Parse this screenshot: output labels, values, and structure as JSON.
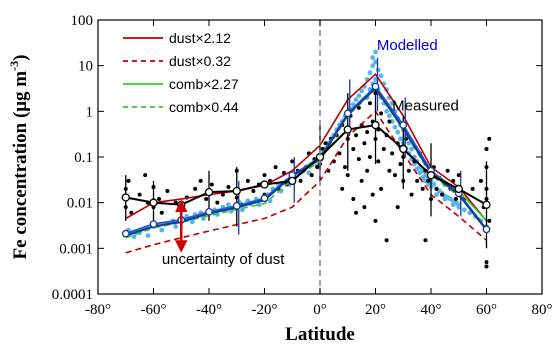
{
  "chart_data": {
    "type": "line",
    "xlabel": "Latitude",
    "ylabel": "Fe concentration (μg m",
    "ylabel_sup": "-3",
    "ylabel_close": ")",
    "xlim": [
      -80,
      80
    ],
    "ylim": [
      0.0001,
      100
    ],
    "yscale": "log",
    "x_ticks": [
      -80,
      -60,
      -40,
      -20,
      0,
      20,
      40,
      60,
      80
    ],
    "x_tick_labels": [
      "-80°",
      "-60°",
      "-40°",
      "-20°",
      "0°",
      "20°",
      "40°",
      "60°",
      "80°"
    ],
    "y_ticks": [
      0.0001,
      0.001,
      0.01,
      0.1,
      1,
      10,
      100
    ],
    "y_tick_labels": [
      "0.0001",
      "0.001",
      "0.01",
      "0.1",
      "1",
      "10",
      "100"
    ],
    "equator_line": 0,
    "legend": {
      "placement": "top-left",
      "entries": [
        {
          "label": "dust×2.12",
          "color": "#c00000",
          "dash": false
        },
        {
          "label": "dust×0.32",
          "color": "#c00000",
          "dash": true
        },
        {
          "label": "comb×2.27",
          "color": "#33cc33",
          "dash": false
        },
        {
          "label": "comb×0.44",
          "color": "#33cc33",
          "dash": true
        }
      ]
    },
    "x": [
      -70,
      -60,
      -50,
      -40,
      -30,
      -20,
      -10,
      0,
      10,
      20,
      30,
      40,
      50,
      60
    ],
    "series": [
      {
        "name": "dust×2.12",
        "color": "#c00000",
        "dash": false,
        "values": [
          0.0045,
          0.01,
          0.012,
          0.015,
          0.018,
          0.024,
          0.05,
          0.18,
          1.8,
          6.5,
          0.8,
          0.06,
          0.022,
          0.004
        ]
      },
      {
        "name": "dust×0.32",
        "color": "#c00000",
        "dash": true,
        "values": [
          0.0008,
          0.0012,
          0.0017,
          0.0024,
          0.0033,
          0.0045,
          0.008,
          0.03,
          0.28,
          1.0,
          0.12,
          0.015,
          0.005,
          0.0015
        ]
      },
      {
        "name": "comb×2.27",
        "color": "#33cc33",
        "dash": false,
        "values": [
          0.002,
          0.003,
          0.004,
          0.006,
          0.008,
          0.011,
          0.04,
          0.1,
          0.9,
          3.4,
          0.45,
          0.05,
          0.018,
          0.004
        ]
      },
      {
        "name": "comb×0.44",
        "color": "#33cc33",
        "dash": true,
        "values": [
          0.0017,
          0.0028,
          0.0037,
          0.0052,
          0.0071,
          0.0095,
          0.032,
          0.08,
          0.8,
          3.0,
          0.4,
          0.04,
          0.014,
          0.003
        ]
      },
      {
        "name": "",
        "color": "#2060e0",
        "dash": false,
        "values": [
          0.0021,
          0.0034,
          0.0042,
          0.0063,
          0.0085,
          0.0125,
          0.04,
          0.095,
          0.9,
          3.5,
          0.5,
          0.05,
          0.016,
          0.0026
        ]
      },
      {
        "name": "",
        "color": "#1a3a9a",
        "dash": false,
        "values": [
          0.0019,
          0.003,
          0.0038,
          0.0058,
          0.0078,
          0.0115,
          0.038,
          0.09,
          0.85,
          3.2,
          0.42,
          0.045,
          0.015,
          0.0025
        ]
      },
      {
        "name": "",
        "color": "#000000",
        "dash": false,
        "values": [
          0.013,
          0.01,
          0.009,
          0.017,
          0.018,
          0.025,
          0.03,
          0.1,
          0.4,
          0.5,
          0.15,
          0.04,
          0.02,
          0.009
        ]
      }
    ],
    "modelled_markers": {
      "x": [
        -70,
        -60,
        -50,
        -40,
        -30,
        -20,
        -10,
        0,
        10,
        20,
        30,
        40,
        50,
        60
      ],
      "values": [
        0.0021,
        0.0034,
        0.0042,
        0.0063,
        0.0085,
        0.0125,
        0.04,
        0.095,
        0.9,
        3.5,
        0.5,
        0.05,
        0.016,
        0.0026
      ]
    },
    "measured_markers": {
      "x": [
        -70,
        -60,
        -50,
        -40,
        -30,
        -20,
        -10,
        0,
        10,
        20,
        30,
        40,
        50,
        60
      ],
      "values": [
        0.013,
        0.01,
        0.009,
        0.017,
        0.018,
        0.025,
        0.03,
        0.1,
        0.4,
        0.5,
        0.15,
        0.04,
        0.02,
        0.009
      ]
    },
    "measured_errorbars": [
      {
        "x": -70,
        "low": 0.004,
        "high": 0.04
      },
      {
        "x": -60,
        "low": 0.003,
        "high": 0.03
      },
      {
        "x": -40,
        "low": 0.004,
        "high": 0.05
      },
      {
        "x": -30,
        "low": 0.003,
        "high": 0.06
      },
      {
        "x": 0,
        "low": 0.03,
        "high": 0.5
      },
      {
        "x": 10,
        "low": 0.05,
        "high": 2.5
      },
      {
        "x": 20,
        "low": 0.07,
        "high": 3
      },
      {
        "x": 30,
        "low": 0.02,
        "high": 0.8
      },
      {
        "x": 40,
        "low": 0.005,
        "high": 0.2
      },
      {
        "x": 60,
        "low": 0.001,
        "high": 0.08
      }
    ],
    "modelled_errorbars": [
      {
        "x": -30,
        "low": 0.002,
        "high": 0.03
      },
      {
        "x": -10,
        "low": 0.01,
        "high": 0.1
      },
      {
        "x": 10,
        "low": 0.3,
        "high": 5
      },
      {
        "x": 20,
        "low": 1,
        "high": 15
      },
      {
        "x": 30,
        "low": 0.1,
        "high": 2
      },
      {
        "x": 50,
        "low": 0.005,
        "high": 0.05
      }
    ],
    "measured_points": [
      [
        -70,
        0.012
      ],
      [
        -70,
        0.02
      ],
      [
        -70,
        0.008
      ],
      [
        -69,
        0.03
      ],
      [
        -68,
        0.006
      ],
      [
        -65,
        0.015
      ],
      [
        -63,
        0.04
      ],
      [
        -62,
        0.01
      ],
      [
        -60,
        0.008
      ],
      [
        -60,
        0.022
      ],
      [
        -58,
        0.012
      ],
      [
        -57,
        0.006
      ],
      [
        -55,
        0.018
      ],
      [
        -52,
        0.01
      ],
      [
        -50,
        0.009
      ],
      [
        -48,
        0.013
      ],
      [
        -45,
        0.02
      ],
      [
        -43,
        0.03
      ],
      [
        -41,
        0.012
      ],
      [
        -40,
        0.018
      ],
      [
        -39,
        0.025
      ],
      [
        -37,
        0.01
      ],
      [
        -35,
        0.015
      ],
      [
        -33,
        0.022
      ],
      [
        -30,
        0.013
      ],
      [
        -30,
        0.05
      ],
      [
        -28,
        0.009
      ],
      [
        -26,
        0.03
      ],
      [
        -24,
        0.018
      ],
      [
        -22,
        0.025
      ],
      [
        -20,
        0.04
      ],
      [
        -20,
        0.015
      ],
      [
        -18,
        0.03
      ],
      [
        -16,
        0.06
      ],
      [
        -15,
        0.02
      ],
      [
        -13,
        0.045
      ],
      [
        -12,
        0.025
      ],
      [
        -10,
        0.035
      ],
      [
        -10,
        0.08
      ],
      [
        -8,
        0.05
      ],
      [
        -7,
        0.03
      ],
      [
        -5,
        0.06
      ],
      [
        -4,
        0.12
      ],
      [
        -3,
        0.04
      ],
      [
        -2,
        0.09
      ],
      [
        -1,
        0.06
      ],
      [
        0,
        0.07
      ],
      [
        1,
        0.15
      ],
      [
        2,
        0.2
      ],
      [
        3,
        0.05
      ],
      [
        4,
        0.25
      ],
      [
        5,
        0.08
      ],
      [
        6,
        0.3
      ],
      [
        7,
        0.12
      ],
      [
        8,
        0.5
      ],
      [
        8,
        0.02
      ],
      [
        9,
        0.06
      ],
      [
        10,
        0.25
      ],
      [
        10,
        0.04
      ],
      [
        11,
        0.8
      ],
      [
        12,
        0.15
      ],
      [
        12,
        0.012
      ],
      [
        13,
        0.3
      ],
      [
        13,
        0.006
      ],
      [
        14,
        0.09
      ],
      [
        14,
        1.2
      ],
      [
        15,
        0.5
      ],
      [
        15,
        0.03
      ],
      [
        16,
        0.2
      ],
      [
        16,
        0.008
      ],
      [
        17,
        0.35
      ],
      [
        17,
        0.05
      ],
      [
        18,
        1.5
      ],
      [
        18,
        0.1
      ],
      [
        19,
        0.6
      ],
      [
        19,
        0.015
      ],
      [
        20,
        0.25
      ],
      [
        20,
        2.5
      ],
      [
        20,
        0.004
      ],
      [
        21,
        0.08
      ],
      [
        21,
        0.4
      ],
      [
        22,
        0.9
      ],
      [
        22,
        0.02
      ],
      [
        23,
        0.15
      ],
      [
        24,
        0.3
      ],
      [
        24,
        0.0015
      ],
      [
        25,
        0.05
      ],
      [
        25,
        0.6
      ],
      [
        26,
        0.12
      ],
      [
        27,
        0.04
      ],
      [
        28,
        0.2
      ],
      [
        28,
        0.008
      ],
      [
        29,
        0.07
      ],
      [
        30,
        0.1
      ],
      [
        30,
        0.03
      ],
      [
        31,
        0.25
      ],
      [
        32,
        0.05
      ],
      [
        33,
        0.015
      ],
      [
        34,
        0.08
      ],
      [
        35,
        0.03
      ],
      [
        36,
        0.12
      ],
      [
        37,
        0.02
      ],
      [
        38,
        0.05
      ],
      [
        38,
        0.0015
      ],
      [
        39,
        0.03
      ],
      [
        40,
        0.04
      ],
      [
        40,
        0.012
      ],
      [
        41,
        0.06
      ],
      [
        42,
        0.02
      ],
      [
        43,
        0.035
      ],
      [
        44,
        0.015
      ],
      [
        45,
        0.025
      ],
      [
        46,
        0.05
      ],
      [
        47,
        0.02
      ],
      [
        48,
        0.03
      ],
      [
        49,
        0.012
      ],
      [
        50,
        0.018
      ],
      [
        50,
        0.04
      ],
      [
        52,
        0.012
      ],
      [
        55,
        0.02
      ],
      [
        58,
        0.03
      ],
      [
        59,
        0.008
      ],
      [
        60,
        0.06
      ],
      [
        60,
        0.15
      ],
      [
        60,
        0.012
      ],
      [
        60,
        0.0005
      ],
      [
        60,
        0.0004
      ],
      [
        60,
        0.02
      ],
      [
        61,
        0.004
      ],
      [
        61,
        0.25
      ]
    ],
    "modelled_points": [
      [
        -70,
        0.002
      ],
      [
        -69,
        0.0025
      ],
      [
        -67,
        0.0018
      ],
      [
        -65,
        0.0022
      ],
      [
        -63,
        0.0028
      ],
      [
        -62,
        0.0019
      ],
      [
        -60,
        0.003
      ],
      [
        -58,
        0.0032
      ],
      [
        -57,
        0.0025
      ],
      [
        -55,
        0.0035
      ],
      [
        -53,
        0.004
      ],
      [
        -52,
        0.003
      ],
      [
        -50,
        0.0042
      ],
      [
        -48,
        0.005
      ],
      [
        -46,
        0.0038
      ],
      [
        -45,
        0.0055
      ],
      [
        -43,
        0.006
      ],
      [
        -42,
        0.0045
      ],
      [
        -40,
        0.0065
      ],
      [
        -38,
        0.007
      ],
      [
        -37,
        0.0055
      ],
      [
        -35,
        0.008
      ],
      [
        -33,
        0.009
      ],
      [
        -32,
        0.0065
      ],
      [
        -30,
        0.0085
      ],
      [
        -29,
        0.01
      ],
      [
        -28,
        0.007
      ],
      [
        -26,
        0.011
      ],
      [
        -25,
        0.0095
      ],
      [
        -23,
        0.012
      ],
      [
        -22,
        0.009
      ],
      [
        -20,
        0.0125
      ],
      [
        -19,
        0.015
      ],
      [
        -18,
        0.011
      ],
      [
        -17,
        0.02
      ],
      [
        -15,
        0.025
      ],
      [
        -14,
        0.018
      ],
      [
        -12,
        0.03
      ],
      [
        -11,
        0.025
      ],
      [
        -10,
        0.04
      ],
      [
        -9,
        0.035
      ],
      [
        -8,
        0.045
      ],
      [
        -6,
        0.05
      ],
      [
        -5,
        0.06
      ],
      [
        -4,
        0.045
      ],
      [
        -3,
        0.07
      ],
      [
        -2,
        0.08
      ],
      [
        -1,
        0.065
      ],
      [
        0,
        0.09
      ],
      [
        1,
        0.12
      ],
      [
        2,
        0.15
      ],
      [
        3,
        0.2
      ],
      [
        4,
        0.25
      ],
      [
        5,
        0.3
      ],
      [
        6,
        0.4
      ],
      [
        7,
        0.5
      ],
      [
        8,
        0.6
      ],
      [
        9,
        0.8
      ],
      [
        10,
        0.9
      ],
      [
        11,
        1.1
      ],
      [
        12,
        1.4
      ],
      [
        13,
        1.8
      ],
      [
        14,
        2.2
      ],
      [
        15,
        2.8
      ],
      [
        16,
        3.5
      ],
      [
        17,
        5
      ],
      [
        17,
        2
      ],
      [
        18,
        7
      ],
      [
        18,
        3
      ],
      [
        19,
        10
      ],
      [
        19,
        4
      ],
      [
        19,
        15
      ],
      [
        20,
        12
      ],
      [
        20,
        5
      ],
      [
        20,
        20
      ],
      [
        21,
        8
      ],
      [
        21,
        3
      ],
      [
        22,
        6
      ],
      [
        22,
        2
      ],
      [
        23,
        4
      ],
      [
        23,
        1.5
      ],
      [
        24,
        3
      ],
      [
        24,
        1
      ],
      [
        25,
        2
      ],
      [
        25,
        0.8
      ],
      [
        26,
        1.5
      ],
      [
        26,
        0.6
      ],
      [
        27,
        1
      ],
      [
        27,
        0.45
      ],
      [
        28,
        0.7
      ],
      [
        28,
        0.35
      ],
      [
        29,
        0.5
      ],
      [
        29,
        0.25
      ],
      [
        30,
        0.4
      ],
      [
        30,
        0.2
      ],
      [
        31,
        0.3
      ],
      [
        31,
        0.15
      ],
      [
        32,
        0.2
      ],
      [
        32,
        0.12
      ],
      [
        33,
        0.15
      ],
      [
        33,
        0.09
      ],
      [
        34,
        0.1
      ],
      [
        34,
        0.07
      ],
      [
        35,
        0.08
      ],
      [
        35,
        0.055
      ],
      [
        36,
        0.06
      ],
      [
        36,
        0.045
      ],
      [
        37,
        0.05
      ],
      [
        37,
        0.035
      ],
      [
        38,
        0.04
      ],
      [
        38,
        0.03
      ],
      [
        39,
        0.035
      ],
      [
        39,
        0.025
      ],
      [
        40,
        0.03
      ],
      [
        40,
        0.022
      ],
      [
        41,
        0.025
      ],
      [
        42,
        0.02
      ],
      [
        42,
        0.015
      ],
      [
        43,
        0.018
      ],
      [
        44,
        0.016
      ],
      [
        45,
        0.014
      ],
      [
        45,
        0.012
      ],
      [
        46,
        0.013
      ],
      [
        47,
        0.012
      ],
      [
        48,
        0.011
      ],
      [
        48,
        0.009
      ],
      [
        49,
        0.01
      ],
      [
        50,
        0.009
      ],
      [
        50,
        0.008
      ],
      [
        52,
        0.007
      ],
      [
        54,
        0.006
      ],
      [
        56,
        0.005
      ],
      [
        58,
        0.004
      ],
      [
        60,
        0.003
      ],
      [
        60,
        0.0025
      ]
    ],
    "annotations": {
      "modelled": {
        "text": "Modelled",
        "color": "#0000ee",
        "x": 20.5,
        "y": 22
      },
      "measured": {
        "text": "Measured",
        "color": "#000000",
        "x": 26,
        "y": 1.05
      },
      "uncertainty": {
        "text": "uncertainty of dust",
        "color": "#000000",
        "x": -57,
        "y": 0.00045
      },
      "uncertainty_arrow": {
        "color": "#d00000",
        "x": -50,
        "y_low": 0.0011,
        "y_high": 0.0085
      }
    }
  }
}
